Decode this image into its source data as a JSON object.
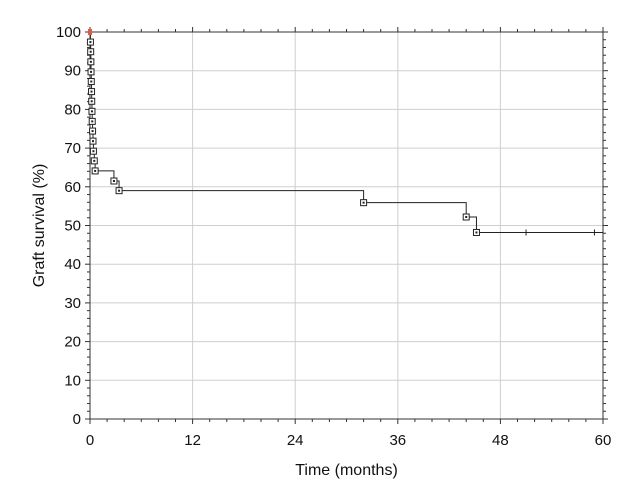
{
  "chart_data": {
    "type": "line",
    "title": "",
    "xlabel": "Time (months)",
    "ylabel": "Graft survival (%)",
    "xlim": [
      0,
      60
    ],
    "ylim": [
      0,
      100
    ],
    "xticks": [
      0,
      12,
      24,
      36,
      48,
      60
    ],
    "yticks": [
      0,
      10,
      20,
      30,
      40,
      50,
      60,
      70,
      80,
      90,
      100
    ],
    "grid": true,
    "series": [
      {
        "style": "step",
        "color": "#222222",
        "points": [
          {
            "x": 0,
            "y": 100
          },
          {
            "x": 0.05,
            "y": 97.4
          },
          {
            "x": 0.08,
            "y": 94.9
          },
          {
            "x": 0.1,
            "y": 92.3
          },
          {
            "x": 0.12,
            "y": 89.7
          },
          {
            "x": 0.15,
            "y": 87.2
          },
          {
            "x": 0.18,
            "y": 84.6
          },
          {
            "x": 0.2,
            "y": 82.1
          },
          {
            "x": 0.23,
            "y": 79.5
          },
          {
            "x": 0.26,
            "y": 76.9
          },
          {
            "x": 0.3,
            "y": 74.4
          },
          {
            "x": 0.35,
            "y": 71.8
          },
          {
            "x": 0.4,
            "y": 69.2
          },
          {
            "x": 0.5,
            "y": 66.7
          },
          {
            "x": 0.6,
            "y": 64.1
          },
          {
            "x": 2.8,
            "y": 61.5
          },
          {
            "x": 3.4,
            "y": 59.0
          },
          {
            "x": 32.0,
            "y": 55.9
          },
          {
            "x": 44.0,
            "y": 52.2
          },
          {
            "x": 45.2,
            "y": 48.2
          }
        ],
        "end_x": 60,
        "event_markers_x": [
          0.05,
          0.08,
          0.1,
          0.12,
          0.15,
          0.18,
          0.2,
          0.23,
          0.26,
          0.3,
          0.35,
          0.4,
          0.5,
          0.6,
          2.8,
          3.4,
          32.0,
          44.0,
          45.2
        ],
        "censored_x": [
          51,
          59
        ]
      }
    ],
    "start_marker_color": "#e05a4a"
  }
}
